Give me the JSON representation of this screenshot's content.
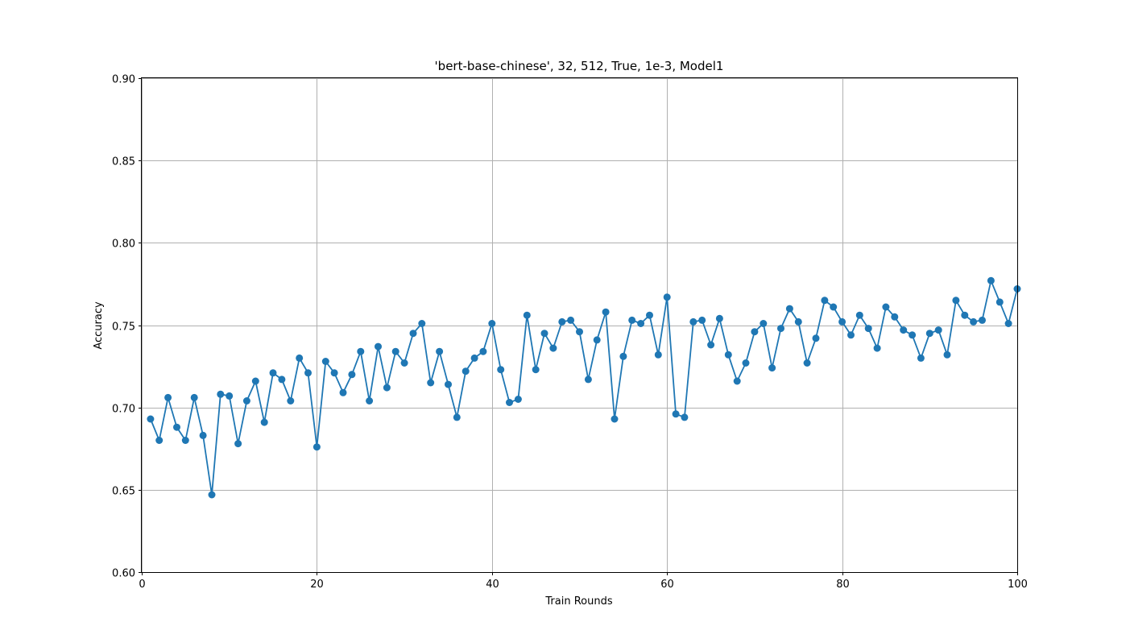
{
  "chart_data": {
    "type": "line",
    "title": "'bert-base-chinese', 32, 512, True, 1e-3, Model1",
    "xlabel": "Train Rounds",
    "ylabel": "Accuracy",
    "xlim": [
      0,
      100
    ],
    "ylim": [
      0.6,
      0.9
    ],
    "xticks": [
      "0",
      "20",
      "40",
      "60",
      "80",
      "100"
    ],
    "yticks": [
      "0.60",
      "0.65",
      "0.70",
      "0.75",
      "0.80",
      "0.85",
      "0.90"
    ],
    "grid": true,
    "color": "#1f77b4",
    "marker": "circle",
    "series": [
      {
        "x": [
          1,
          2,
          3,
          4,
          5,
          6,
          7,
          8,
          9,
          10,
          11,
          12,
          13,
          14,
          15,
          16,
          17,
          18,
          19,
          20,
          21,
          22,
          23,
          24,
          25,
          26,
          27,
          28,
          29,
          30,
          31,
          32,
          33,
          34,
          35,
          36,
          37,
          38,
          39,
          40,
          41,
          42,
          43,
          44,
          45,
          46,
          47,
          48,
          49,
          50,
          51,
          52,
          53,
          54,
          55,
          56,
          57,
          58,
          59,
          60,
          61,
          62,
          63,
          64,
          65,
          66,
          67,
          68,
          69,
          70,
          71,
          72,
          73,
          74,
          75,
          76,
          77,
          78,
          79,
          80,
          81,
          82,
          83,
          84,
          85,
          86,
          87,
          88,
          89,
          90,
          91,
          92,
          93,
          94,
          95,
          96,
          97,
          98,
          99,
          100
        ],
        "values": [
          0.693,
          0.68,
          0.706,
          0.688,
          0.68,
          0.706,
          0.683,
          0.647,
          0.708,
          0.707,
          0.678,
          0.704,
          0.716,
          0.691,
          0.721,
          0.717,
          0.704,
          0.73,
          0.721,
          0.676,
          0.728,
          0.721,
          0.709,
          0.72,
          0.734,
          0.704,
          0.737,
          0.712,
          0.734,
          0.727,
          0.745,
          0.751,
          0.715,
          0.734,
          0.714,
          0.694,
          0.722,
          0.73,
          0.734,
          0.751,
          0.723,
          0.703,
          0.705,
          0.756,
          0.723,
          0.745,
          0.736,
          0.752,
          0.753,
          0.746,
          0.717,
          0.741,
          0.758,
          0.693,
          0.731,
          0.753,
          0.751,
          0.756,
          0.732,
          0.767,
          0.696,
          0.694,
          0.752,
          0.753,
          0.738,
          0.754,
          0.732,
          0.716,
          0.727,
          0.746,
          0.751,
          0.724,
          0.748,
          0.76,
          0.752,
          0.727,
          0.742,
          0.765,
          0.761,
          0.752,
          0.744,
          0.756,
          0.748,
          0.736,
          0.761,
          0.755,
          0.747,
          0.744,
          0.73,
          0.745,
          0.747,
          0.732,
          0.765,
          0.756,
          0.752,
          0.753,
          0.777,
          0.764,
          0.751,
          0.772
        ]
      }
    ]
  }
}
